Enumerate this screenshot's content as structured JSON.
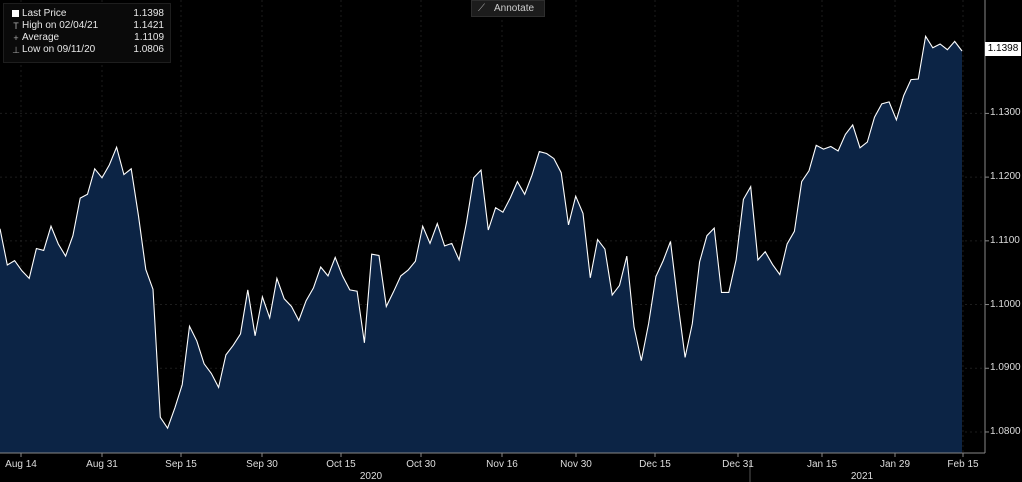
{
  "legend": {
    "rows": [
      {
        "label": "Last Price",
        "value": "1.1398",
        "marker": "square"
      },
      {
        "label": "High on 02/04/21",
        "value": "1.1421",
        "marker": "T"
      },
      {
        "label": "Average",
        "value": "1.1109",
        "marker": "+"
      },
      {
        "label": "Low on 09/11/20",
        "value": "1.0806",
        "marker": "⊥"
      }
    ]
  },
  "toolbar": {
    "annotate_label": "Annotate",
    "annotate_icon": "pencil-icon"
  },
  "last_price_label": "1.1398",
  "colors": {
    "area_fill": "#0c2445",
    "line": "#ffffff",
    "background": "#000000",
    "grid": "#2a2a2a"
  },
  "chart_data": {
    "type": "area",
    "x_tick_labels": [
      "Aug 14",
      "Aug 31",
      "Sep 15",
      "Sep 30",
      "Oct 15",
      "Oct 30",
      "Nov 16",
      "Nov 30",
      "Dec 15",
      "Dec 31",
      "Jan 15",
      "Jan 29",
      "Feb 15"
    ],
    "year_labels": [
      "2020",
      "2021"
    ],
    "y_tick_labels": [
      "1.0800",
      "1.0900",
      "1.1000",
      "1.1100",
      "1.1200",
      "1.1300"
    ],
    "ylim": [
      1.0767,
      1.1478
    ],
    "grid": true,
    "legend_position": "top-left",
    "series": [
      {
        "values": [
          1.1119,
          1.1062,
          1.1069,
          1.1053,
          1.1041,
          1.1088,
          1.1085,
          1.1123,
          1.1095,
          1.1076,
          1.1108,
          1.1167,
          1.1173,
          1.1213,
          1.1199,
          1.1219,
          1.1247,
          1.1204,
          1.1213,
          1.1139,
          1.1055,
          1.1024,
          1.0823,
          1.0806,
          1.0838,
          1.0874,
          1.0966,
          1.0943,
          1.0907,
          1.0892,
          1.087,
          1.0921,
          1.0936,
          1.0954,
          1.1023,
          1.0951,
          1.1012,
          1.0979,
          1.1041,
          1.1009,
          1.0997,
          1.0975,
          1.1006,
          1.1026,
          1.1059,
          1.1045,
          1.1074,
          1.1045,
          1.1023,
          1.1021,
          1.094,
          1.1079,
          1.1077,
          1.0997,
          1.102,
          1.1045,
          1.1054,
          1.1068,
          1.1123,
          1.1096,
          1.1127,
          1.1092,
          1.1096,
          1.107,
          1.1128,
          1.1199,
          1.1211,
          1.1117,
          1.1152,
          1.1145,
          1.1167,
          1.1193,
          1.1173,
          1.1203,
          1.124,
          1.1237,
          1.1229,
          1.1207,
          1.1125,
          1.117,
          1.1143,
          1.1042,
          1.1102,
          1.1087,
          1.1015,
          1.103,
          1.1076,
          1.0965,
          1.0912,
          1.097,
          1.1044,
          1.1069,
          1.1099,
          1.1004,
          1.0917,
          1.097,
          1.1067,
          1.1108,
          1.112,
          1.1019,
          1.1019,
          1.107,
          1.1165,
          1.1185,
          1.107,
          1.1083,
          1.1063,
          1.1047,
          1.1095,
          1.1115,
          1.1193,
          1.121,
          1.125,
          1.1244,
          1.1248,
          1.1241,
          1.1267,
          1.1282,
          1.1246,
          1.1255,
          1.1294,
          1.1315,
          1.1318,
          1.129,
          1.1328,
          1.1353,
          1.1354,
          1.1421,
          1.1403,
          1.1409,
          1.14,
          1.1413,
          1.1398
        ]
      }
    ]
  }
}
